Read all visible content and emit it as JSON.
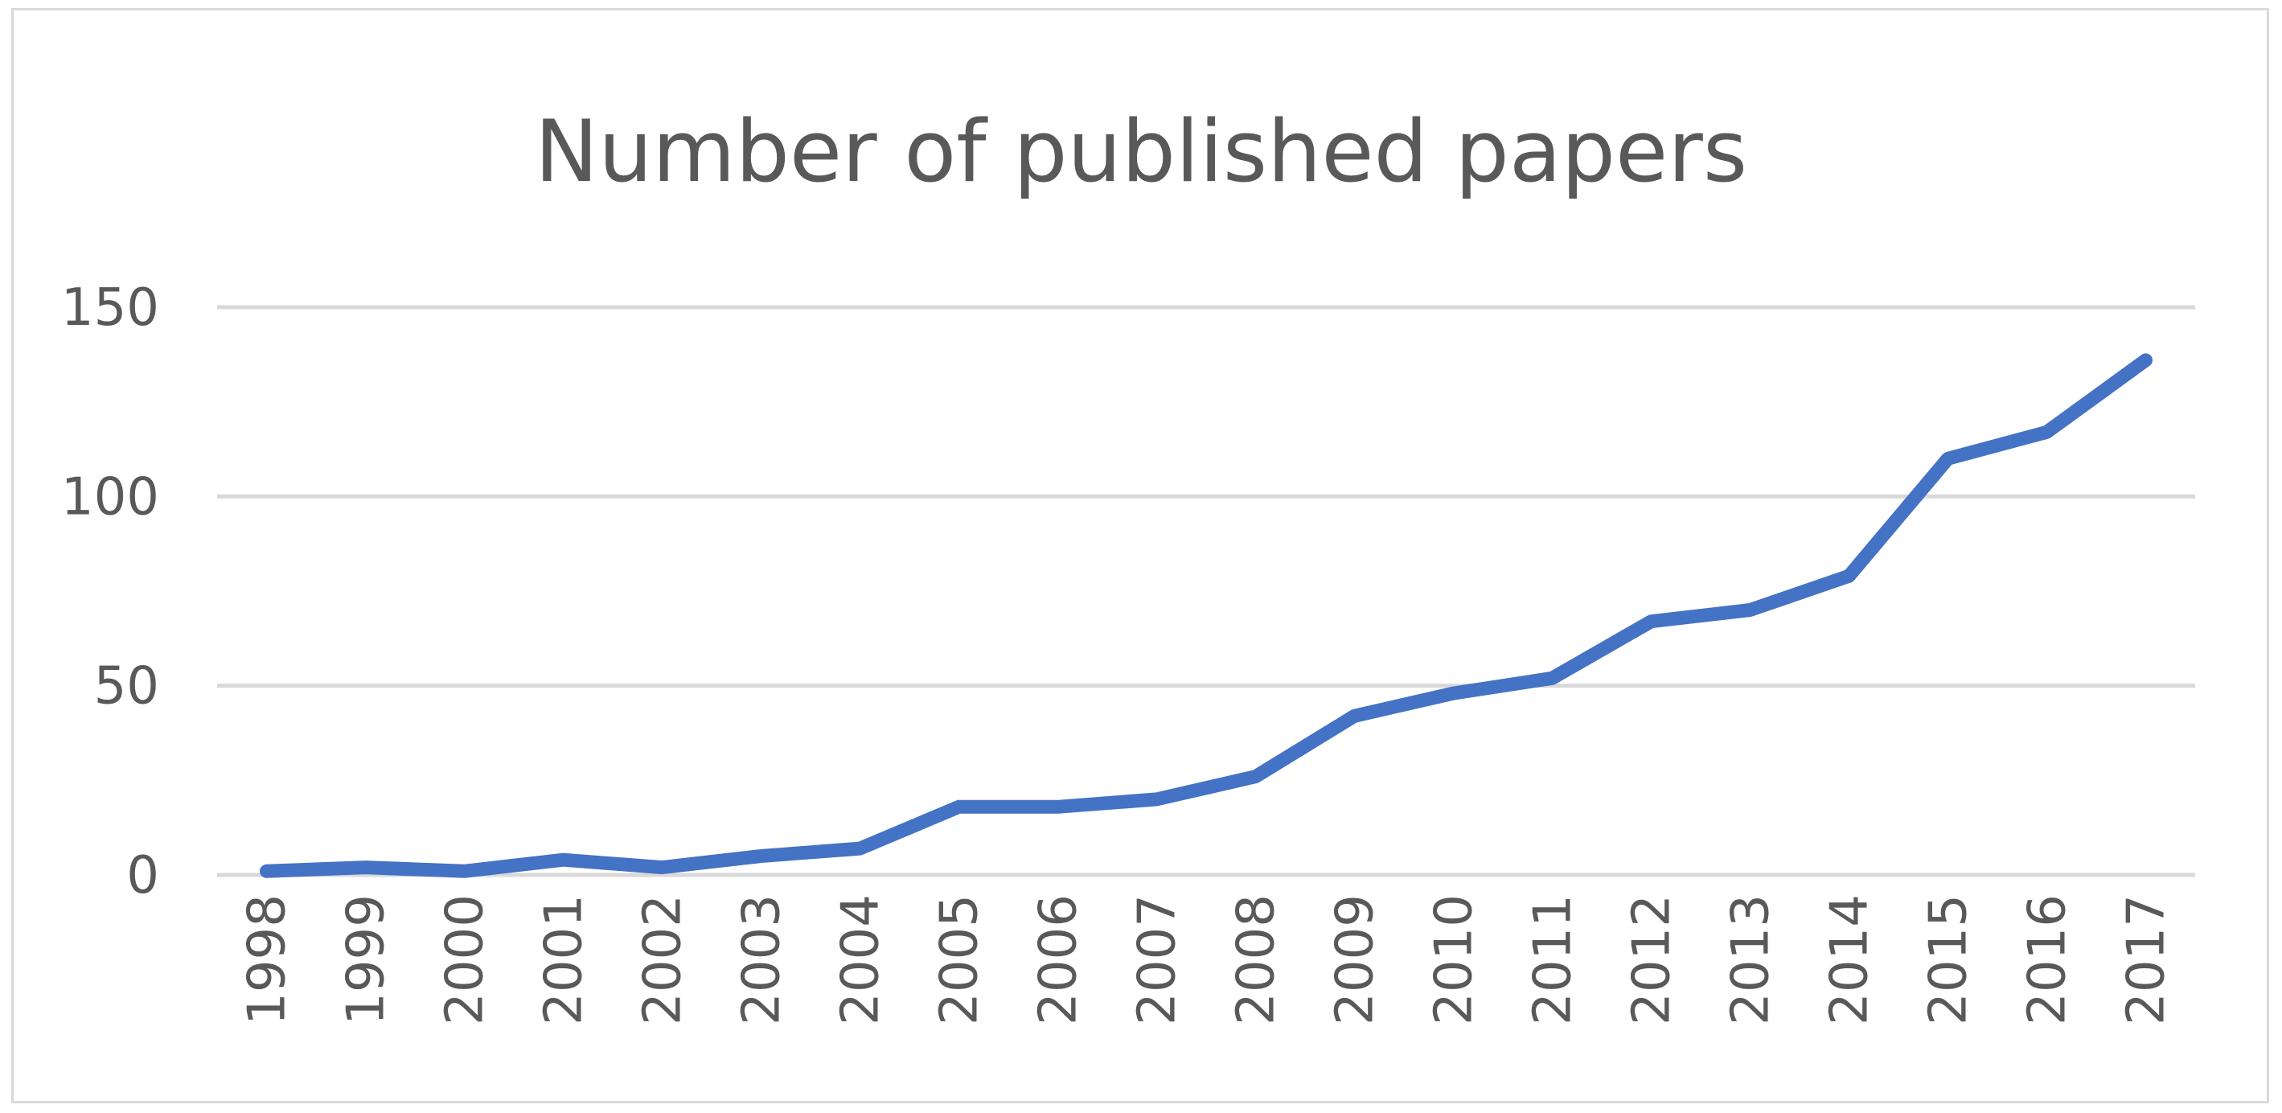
{
  "chart_data": {
    "type": "line",
    "title": "Number of published papers",
    "xlabel": "",
    "ylabel": "",
    "categories": [
      "1998",
      "1999",
      "2000",
      "2001",
      "2002",
      "2003",
      "2004",
      "2005",
      "2006",
      "2007",
      "2008",
      "2009",
      "2010",
      "2011",
      "2012",
      "2013",
      "2014",
      "2015",
      "2016",
      "2017"
    ],
    "series": [
      {
        "values": [
          1,
          2,
          1,
          4,
          2,
          5,
          7,
          18,
          18,
          20,
          26,
          42,
          48,
          52,
          67,
          70,
          79,
          110,
          117,
          136
        ],
        "color": "#4472c4"
      }
    ],
    "ylim": [
      0,
      150
    ],
    "yticks": [
      "0",
      "50",
      "100",
      "150"
    ],
    "grid": true,
    "legend": "none"
  }
}
